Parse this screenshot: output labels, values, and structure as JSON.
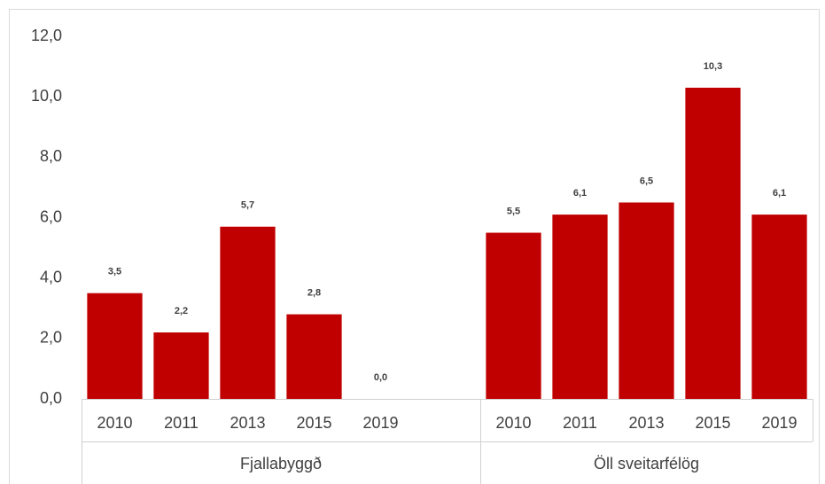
{
  "chart_data": {
    "type": "bar",
    "color": "#c00000",
    "groups": [
      {
        "name": "Fjallabyggð",
        "categories": [
          "2010",
          "2011",
          "2013",
          "2015",
          "2019"
        ],
        "values": [
          3.5,
          2.2,
          5.7,
          2.8,
          0.0
        ],
        "value_labels": [
          "3,5",
          "2,2",
          "5,7",
          "2,8",
          "0,0"
        ]
      },
      {
        "name": "Öll sveitarfélög",
        "categories": [
          "2010",
          "2011",
          "2013",
          "2015",
          "2019"
        ],
        "values": [
          5.5,
          6.1,
          6.5,
          10.3,
          6.1
        ],
        "value_labels": [
          "5,5",
          "6,1",
          "6,5",
          "10,3",
          "6,1"
        ]
      }
    ],
    "ylim": [
      0,
      12
    ],
    "yticks": [
      {
        "value": 0,
        "label": "0,0"
      },
      {
        "value": 2,
        "label": "2,0"
      },
      {
        "value": 4,
        "label": "4,0"
      },
      {
        "value": 6,
        "label": "6,0"
      },
      {
        "value": 8,
        "label": "8,0"
      },
      {
        "value": 10,
        "label": "10,0"
      },
      {
        "value": 12,
        "label": "12,0"
      }
    ]
  }
}
